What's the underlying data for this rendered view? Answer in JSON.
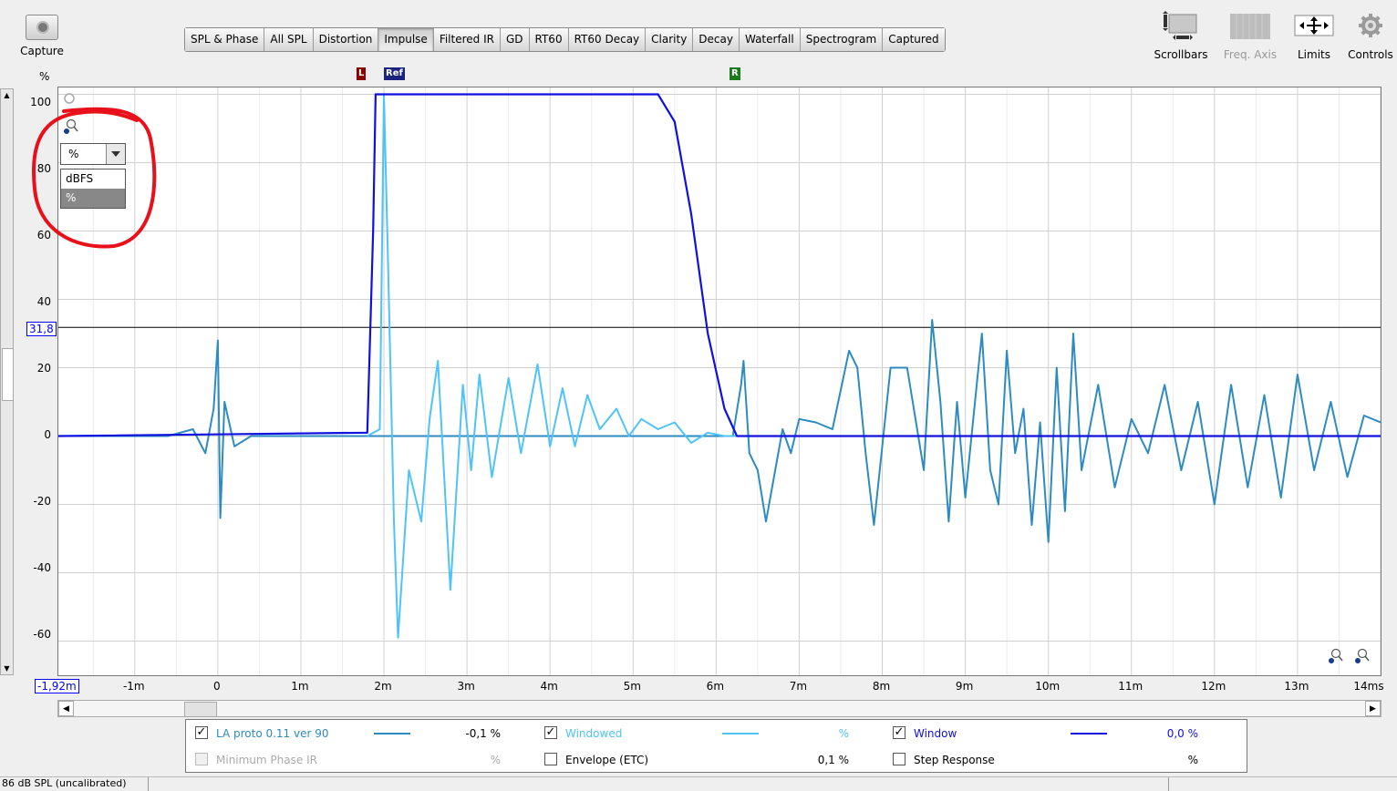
{
  "capture": {
    "label": "Capture",
    "icon": "camera-icon"
  },
  "tabs": [
    "SPL & Phase",
    "All SPL",
    "Distortion",
    "Impulse",
    "Filtered IR",
    "GD",
    "RT60",
    "RT60 Decay",
    "Clarity",
    "Decay",
    "Waterfall",
    "Spectrogram",
    "Captured"
  ],
  "active_tab": "Impulse",
  "toolbar": {
    "scrollbars": "Scrollbars",
    "freq_axis": "Freq. Axis",
    "limits": "Limits",
    "controls": "Controls"
  },
  "y_unit": "%",
  "markers": {
    "left": "L",
    "ref": "Ref",
    "right": "R"
  },
  "cursor_y_label": "31,8",
  "cursor_x_label": "-1,92m",
  "unit_dropdown": {
    "value": "%",
    "options": [
      "dBFS",
      "%"
    ],
    "selected": "%"
  },
  "chart_data": {
    "type": "line",
    "xlabel": "",
    "ylabel": "%",
    "x_unit": "ms",
    "xlim": [
      -1.92,
      14
    ],
    "ylim": [
      -70,
      102
    ],
    "x_ticks": [
      "-1m",
      "0",
      "1m",
      "2m",
      "3m",
      "4m",
      "5m",
      "6m",
      "7m",
      "8m",
      "9m",
      "10m",
      "11m",
      "12m",
      "13m",
      "14ms"
    ],
    "x_tick_values": [
      -1,
      0,
      1,
      2,
      3,
      4,
      5,
      6,
      7,
      8,
      9,
      10,
      11,
      12,
      13,
      14
    ],
    "y_ticks": [
      100,
      80,
      60,
      40,
      20,
      0,
      -20,
      -40,
      -60
    ],
    "grid": true,
    "cursor_hline": 31.8,
    "series": [
      {
        "name": "LA proto 0.11 ver 90",
        "color": "#2e8bc0",
        "x": [
          -1.92,
          -0.6,
          -0.3,
          -0.15,
          -0.05,
          0.0,
          0.03,
          0.08,
          0.2,
          0.4,
          1.8,
          6.2,
          6.3,
          6.33,
          6.4,
          6.5,
          6.6,
          6.8,
          6.9,
          7.0,
          7.2,
          7.4,
          7.6,
          7.7,
          7.8,
          7.9,
          8.0,
          8.1,
          8.3,
          8.5,
          8.6,
          8.7,
          8.8,
          8.9,
          9.0,
          9.2,
          9.3,
          9.4,
          9.5,
          9.6,
          9.7,
          9.8,
          9.9,
          10.0,
          10.1,
          10.2,
          10.3,
          10.4,
          10.6,
          10.8,
          11.0,
          11.2,
          11.4,
          11.6,
          11.8,
          12.0,
          12.2,
          12.4,
          12.6,
          12.8,
          13.0,
          13.2,
          13.4,
          13.6,
          13.8,
          14.0
        ],
        "y": [
          0,
          0,
          2,
          -5,
          8,
          28,
          -24,
          10,
          -3,
          0,
          0,
          0,
          15,
          22,
          -5,
          -10,
          -25,
          2,
          -5,
          5,
          4,
          2,
          25,
          20,
          -5,
          -26,
          -3,
          20,
          20,
          -10,
          34,
          10,
          -25,
          10,
          -18,
          30,
          -10,
          -20,
          25,
          -5,
          8,
          -26,
          4,
          -31,
          20,
          -22,
          30,
          -10,
          15,
          -15,
          5,
          -5,
          15,
          -10,
          10,
          -20,
          15,
          -15,
          12,
          -18,
          18,
          -10,
          10,
          -12,
          6,
          4
        ]
      },
      {
        "name": "Windowed",
        "color": "#4fc3f7",
        "x": [
          1.8,
          1.95,
          2.0,
          2.05,
          2.12,
          2.17,
          2.3,
          2.45,
          2.55,
          2.65,
          2.8,
          2.95,
          3.05,
          3.15,
          3.3,
          3.5,
          3.65,
          3.85,
          4.0,
          4.15,
          4.3,
          4.45,
          4.6,
          4.8,
          4.95,
          5.1,
          5.3,
          5.5,
          5.7,
          5.9,
          6.1,
          6.25
        ],
        "y": [
          0,
          2,
          100,
          50,
          -25,
          -59,
          -10,
          -25,
          5,
          22,
          -45,
          15,
          -10,
          18,
          -12,
          17,
          -5,
          21,
          -3,
          14,
          -3,
          12,
          2,
          8,
          0,
          5,
          2,
          4,
          -2,
          1,
          0,
          0
        ]
      },
      {
        "name": "Window",
        "color": "#1010e0",
        "x": [
          -1.92,
          1.8,
          1.87,
          1.9,
          5.3,
          5.5,
          5.7,
          5.9,
          6.1,
          6.25,
          14.0
        ],
        "y": [
          0,
          1,
          60,
          100,
          100,
          92,
          65,
          30,
          8,
          0,
          0
        ]
      }
    ]
  },
  "legend": {
    "items": [
      {
        "label": "LA proto 0.11 ver 90",
        "value": "-0,1 %",
        "checked": true,
        "enabled": true,
        "color": "#2e8bc0"
      },
      {
        "label": "Windowed",
        "value": "%",
        "checked": true,
        "enabled": true,
        "color": "#4fc3f7"
      },
      {
        "label": "Window",
        "value": "0,0 %",
        "checked": true,
        "enabled": true,
        "color": "#1010e0"
      },
      {
        "label": "Minimum Phase IR",
        "value": "%",
        "checked": false,
        "enabled": false
      },
      {
        "label": "Envelope (ETC)",
        "value": "0,1 %",
        "checked": false,
        "enabled": true
      },
      {
        "label": "Step Response",
        "value": "%",
        "checked": false,
        "enabled": true
      }
    ]
  },
  "status": {
    "left": "86 dB SPL (uncalibrated)"
  }
}
